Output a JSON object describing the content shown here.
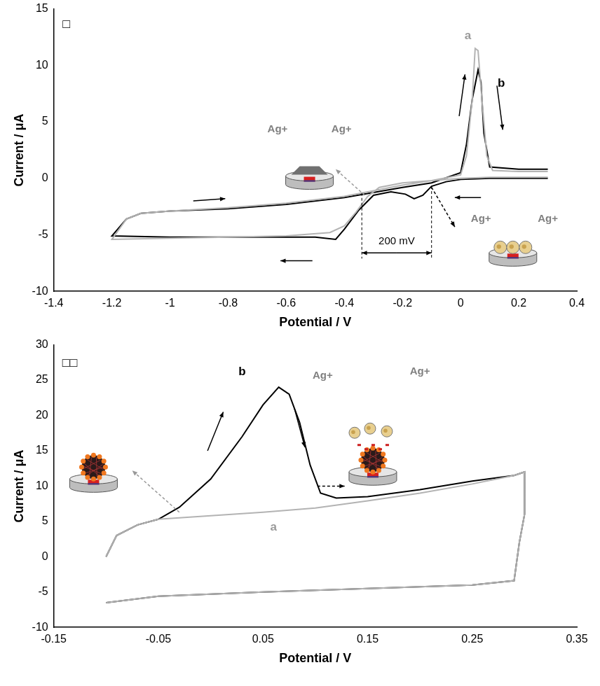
{
  "chart_data": [
    {
      "type": "line",
      "panel_label": "□",
      "x_label": "Potential / V",
      "y_label": "Current / μA",
      "xlim": [
        -1.4,
        0.4
      ],
      "xticks": [
        -1.4,
        -1.2,
        -1,
        -0.8,
        -0.6,
        -0.4,
        -0.2,
        0,
        0.2,
        0.4
      ],
      "ylim": [
        -10,
        15
      ],
      "yticks": [
        -10,
        -5,
        0,
        5,
        10,
        15
      ],
      "grid": false,
      "annotations": [
        "Ag+",
        "Ag+",
        "200 mV",
        "Ag+",
        "Ag+"
      ],
      "series": [
        {
          "name": "a",
          "color": "#b3b3b3",
          "x": [
            0.3,
            0.1,
            0,
            -0.1,
            -0.2,
            -0.28,
            -0.32,
            -0.36,
            -0.4,
            -0.45,
            -0.6,
            -0.8,
            -1.0,
            -1.2,
            -1.15,
            -1.1,
            -1.0,
            -0.8,
            -0.6,
            -0.4,
            -0.3,
            -0.2,
            -0.1,
            0,
            0.02,
            0.04,
            0.05,
            0.06,
            0.07,
            0.09,
            0.11,
            0.2,
            0.3
          ],
          "values": [
            0.1,
            0.1,
            0,
            -0.2,
            -0.4,
            -0.8,
            -1.6,
            -3,
            -4.2,
            -4.8,
            -5.1,
            -5.2,
            -5.3,
            -5.4,
            -3.6,
            -3.1,
            -2.9,
            -2.6,
            -2.2,
            -1.6,
            -1.1,
            -0.6,
            -0.2,
            0.3,
            2,
            7,
            11.5,
            11.3,
            8,
            2,
            0.7,
            0.6,
            0.6
          ]
        },
        {
          "name": "b",
          "color": "#000000",
          "x": [
            0.3,
            0.1,
            0,
            -0.05,
            -0.1,
            -0.13,
            -0.16,
            -0.19,
            -0.24,
            -0.3,
            -0.35,
            -0.4,
            -0.43,
            -0.5,
            -0.7,
            -1.0,
            -1.2,
            -1.15,
            -1.1,
            -1.0,
            -0.8,
            -0.6,
            -0.4,
            -0.2,
            -0.1,
            0,
            0.02,
            0.04,
            0.06,
            0.07,
            0.08,
            0.1,
            0.2,
            0.3
          ],
          "values": [
            0,
            0,
            -0.1,
            -0.3,
            -0.7,
            -1.5,
            -1.8,
            -1.4,
            -1.2,
            -1.5,
            -2.8,
            -4.5,
            -5.4,
            -5.2,
            -5.2,
            -5.2,
            -5.1,
            -3.6,
            -3.1,
            -2.9,
            -2.7,
            -2.3,
            -1.7,
            -0.8,
            -0.4,
            0.5,
            3,
            7,
            9.6,
            8.5,
            4,
            1,
            0.8,
            0.8
          ]
        }
      ]
    },
    {
      "type": "line",
      "panel_label": "□□",
      "x_label": "Potential / V",
      "y_label": "Current / μA",
      "xlim": [
        -0.15,
        0.35
      ],
      "xticks": [
        -0.15,
        -0.05,
        0.05,
        0.15,
        0.25,
        0.35
      ],
      "ylim": [
        -10,
        30
      ],
      "yticks": [
        -10,
        -5,
        0,
        5,
        10,
        15,
        20,
        25,
        30
      ],
      "grid": false,
      "annotations": [
        "Ag+",
        "Ag+"
      ],
      "series": [
        {
          "name": "a",
          "color": "#b3b3b3",
          "x": [
            -0.1,
            -0.09,
            -0.07,
            -0.05,
            0,
            0.05,
            0.1,
            0.15,
            0.2,
            0.25,
            0.29,
            0.3,
            0.3,
            0.295,
            0.29,
            0.25,
            0.15,
            0.05,
            -0.05,
            -0.1
          ],
          "values": [
            0,
            3,
            4.5,
            5.3,
            5.8,
            6.3,
            6.9,
            7.9,
            9,
            10.3,
            11.5,
            12,
            6,
            2,
            -3.4,
            -4,
            -4.5,
            -5,
            -5.6,
            -6.5
          ]
        },
        {
          "name": "b",
          "color": "#000000",
          "x": [
            -0.1,
            -0.09,
            -0.07,
            -0.05,
            -0.03,
            0,
            0.03,
            0.05,
            0.065,
            0.075,
            0.085,
            0.095,
            0.105,
            0.12,
            0.15,
            0.2,
            0.25,
            0.29,
            0.3,
            0.3,
            0.295,
            0.29,
            0.25,
            0.15,
            0.05,
            -0.05,
            -0.1
          ],
          "values": [
            0,
            3,
            4.5,
            5.3,
            7,
            11,
            17,
            21.5,
            24,
            23,
            19,
            13,
            9,
            8.3,
            8.5,
            9.5,
            10.7,
            11.5,
            12,
            6,
            2,
            -3.4,
            -4,
            -4.5,
            -5,
            -5.6,
            -6.5
          ]
        }
      ]
    }
  ]
}
